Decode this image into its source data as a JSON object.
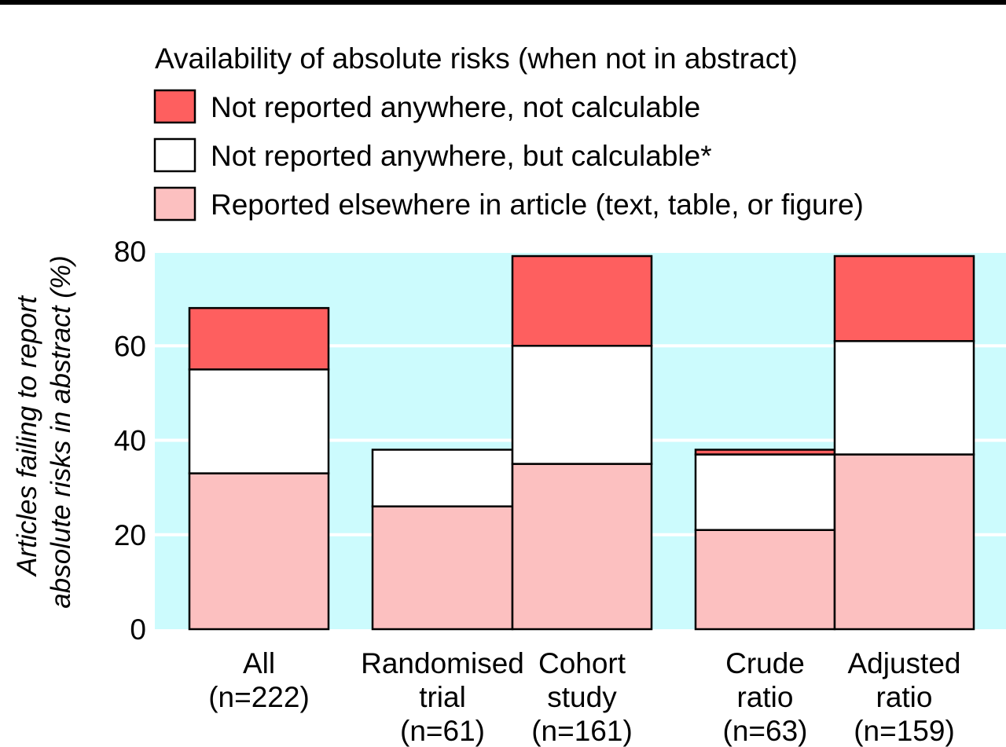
{
  "chart_data": {
    "type": "bar",
    "stacked": true,
    "title": "",
    "legend": {
      "title": "Availability of absolute risks (when not in abstract)",
      "placement": "top"
    },
    "ylabel_lines": [
      "Articles failing to report",
      "absolute risks in abstract (%)"
    ],
    "xlabel": "",
    "ylim": [
      0,
      80
    ],
    "yticks": [
      "0",
      "20",
      "40",
      "60",
      "80"
    ],
    "grid": true,
    "categories": [
      [
        "All",
        "(n=222)"
      ],
      [
        "Randomised",
        "trial",
        "(n=61)"
      ],
      [
        "Cohort",
        "study",
        "(n=161)"
      ],
      [
        "Crude",
        "ratio",
        "(n=63)"
      ],
      [
        "Adjusted",
        "ratio",
        "(n=159)"
      ]
    ],
    "series": [
      {
        "name": "Reported elsewhere in article (text, table, or figure)",
        "color": "#fcc0c0",
        "values": [
          33,
          26,
          35,
          21,
          37
        ]
      },
      {
        "name": "Not reported anywhere, but calculable*",
        "color": "#ffffff",
        "values": [
          22,
          12,
          25,
          16,
          24
        ]
      },
      {
        "name": "Not reported anywhere, not calculable",
        "color": "#fe5f5f",
        "values": [
          13,
          0,
          19,
          1,
          18
        ]
      }
    ],
    "legend_order": [
      2,
      1,
      0
    ],
    "plot_background": "#ccfbfd",
    "gridline_color": "#ffffff"
  }
}
